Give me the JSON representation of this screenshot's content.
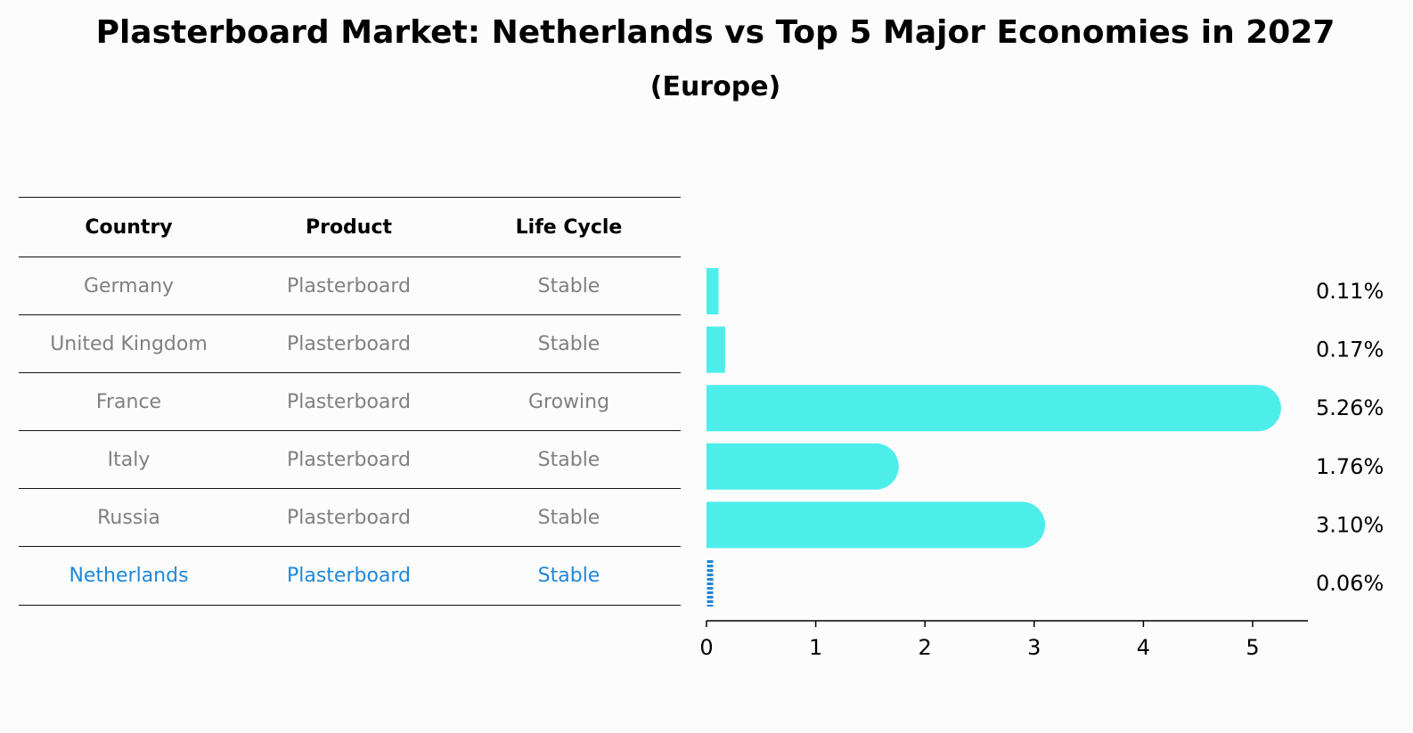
{
  "title": "Plasterboard Market: Netherlands vs Top 5 Major Economies in 2027",
  "subtitle": "(Europe)",
  "table": {
    "headers": [
      "Country",
      "Product",
      "Life Cycle"
    ],
    "rows": [
      [
        "Germany",
        "Plasterboard",
        "Stable"
      ],
      [
        "United Kingdom",
        "Plasterboard",
        "Stable"
      ],
      [
        "France",
        "Plasterboard",
        "Growing"
      ],
      [
        "Italy",
        "Plasterboard",
        "Stable"
      ],
      [
        "Russia",
        "Plasterboard",
        "Stable"
      ],
      [
        "Netherlands",
        "Plasterboard",
        "Stable"
      ]
    ]
  },
  "colors": {
    "bar": "#4deeea",
    "highlight": "#1f87d8",
    "muted_text": "#808080"
  },
  "chart_data": {
    "type": "bar",
    "orientation": "horizontal",
    "categories": [
      "Germany",
      "United Kingdom",
      "France",
      "Italy",
      "Russia",
      "Netherlands"
    ],
    "values": [
      0.11,
      0.17,
      5.26,
      1.76,
      3.1,
      0.06
    ],
    "value_labels": [
      "0.11%",
      "0.17%",
      "5.26%",
      "1.76%",
      "3.10%",
      "0.06%"
    ],
    "highlight_category": "Netherlands",
    "xlim": [
      0,
      5.5
    ],
    "xticks": [
      0,
      1,
      2,
      3,
      4,
      5
    ],
    "xlabel": "",
    "ylabel": "",
    "grid": false
  }
}
